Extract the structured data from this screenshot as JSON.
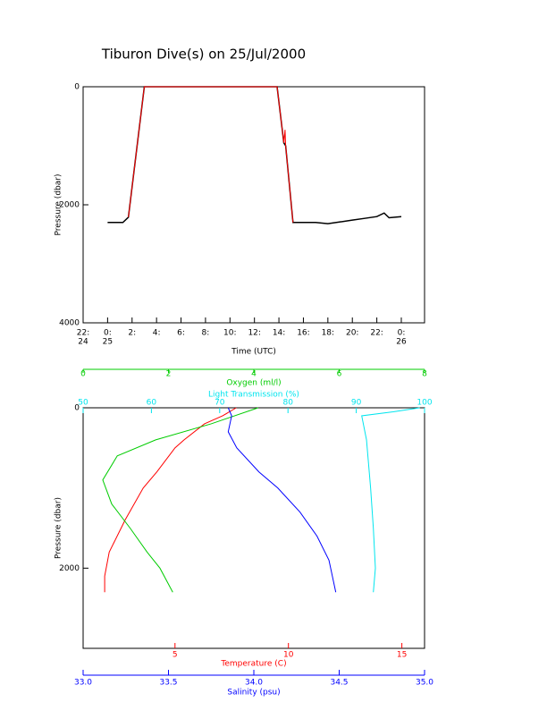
{
  "chart_data": [
    {
      "type": "line",
      "title": "Tiburon Dive(s) on 25/Jul/2000",
      "xlabel": "Time (UTC)",
      "ylabel": "Pressure (dbar)",
      "xlim": [
        -2,
        25.9
      ],
      "ylim": [
        0,
        4000
      ],
      "y_inverted": true,
      "xticks": [
        {
          "value": -2,
          "label": "22:",
          "sublabel": "24"
        },
        {
          "value": 0,
          "label": "0:",
          "sublabel": "25"
        },
        {
          "value": 2,
          "label": "2:"
        },
        {
          "value": 4,
          "label": "4:"
        },
        {
          "value": 6,
          "label": "6:"
        },
        {
          "value": 8,
          "label": "8:"
        },
        {
          "value": 10,
          "label": "10:"
        },
        {
          "value": 12,
          "label": "12:"
        },
        {
          "value": 14,
          "label": "14:"
        },
        {
          "value": 16,
          "label": "16:"
        },
        {
          "value": 18,
          "label": "18:"
        },
        {
          "value": 20,
          "label": "20:"
        },
        {
          "value": 22,
          "label": "22:"
        },
        {
          "value": 24,
          "label": "0:",
          "sublabel": "26"
        }
      ],
      "yticks": [
        0,
        2000,
        4000
      ],
      "series": [
        {
          "color": "#000000",
          "x": [
            0,
            1.25,
            1.7,
            3.0,
            13.85,
            14.4,
            14.55,
            15.15,
            17,
            18,
            19,
            20,
            21,
            22,
            22.6,
            23,
            24
          ],
          "y": [
            2300,
            2300,
            2210,
            0,
            0,
            950,
            1000,
            2300,
            2300,
            2320,
            2290,
            2260,
            2230,
            2200,
            2140,
            2220,
            2200
          ]
        },
        {
          "color": "#ff0000",
          "x": [
            1.7,
            3.0,
            13.85,
            14.4,
            14.5,
            14.55,
            15.15
          ],
          "y": [
            2210,
            0,
            0,
            950,
            730,
            1000,
            2300
          ]
        }
      ]
    },
    {
      "type": "line",
      "ylabel": "Pressure (dbar)",
      "ylim": [
        0,
        3000
      ],
      "y_inverted": true,
      "yticks": [
        0,
        2000
      ],
      "x_axes": [
        {
          "label": "Oxygen (ml/l)",
          "color": "#00cc00",
          "position": "top",
          "xlim": [
            0,
            8
          ],
          "xticks": [
            0,
            2,
            4,
            6,
            8
          ]
        },
        {
          "label": "Light Transmission (%)",
          "color": "#00e5ee",
          "position": "top",
          "xlim": [
            50,
            100
          ],
          "xticks": [
            50,
            60,
            70,
            80,
            90,
            100
          ]
        },
        {
          "label": "Temperature (C)",
          "color": "#ff0000",
          "position": "bottom",
          "xlim": [
            0.95,
            16
          ],
          "xticks": [
            5,
            10,
            15
          ]
        },
        {
          "label": "Salinity (psu)",
          "color": "#0000ff",
          "position": "bottom",
          "xlim": [
            33.0,
            35.0
          ],
          "xticks": [
            {
              "value": 33.0,
              "label": "33.0"
            },
            {
              "value": 33.5,
              "label": "33.5"
            },
            {
              "value": 34.0,
              "label": "34.0"
            },
            {
              "value": 34.5,
              "label": "34.5"
            },
            {
              "value": 35.0,
              "label": "35.0"
            }
          ]
        }
      ],
      "series": [
        {
          "axis": 2,
          "color": "#ff0000",
          "y": [
            0,
            100,
            200,
            400,
            500,
            800,
            1000,
            1400,
            1800,
            2100,
            2300
          ],
          "x": [
            7.7,
            7.1,
            6.3,
            5.4,
            5.0,
            4.2,
            3.6,
            2.8,
            2.1,
            1.9,
            1.9
          ]
        },
        {
          "axis": 0,
          "color": "#00cc00",
          "y": [
            0,
            200,
            400,
            600,
            900,
            1200,
            1500,
            1800,
            2000,
            2200,
            2300
          ],
          "x": [
            4.1,
            3.0,
            1.7,
            0.8,
            0.46,
            0.67,
            1.1,
            1.5,
            1.8,
            2.0,
            2.1
          ]
        },
        {
          "axis": 3,
          "color": "#0000ff",
          "y": [
            0,
            100,
            300,
            500,
            800,
            1000,
            1300,
            1600,
            1900,
            2100,
            2300
          ],
          "x": [
            33.85,
            33.87,
            33.85,
            33.9,
            34.03,
            34.14,
            34.27,
            34.37,
            34.44,
            34.46,
            34.48
          ]
        },
        {
          "axis": 1,
          "color": "#00e5ee",
          "y": [
            0,
            50,
            100,
            400,
            1000,
            1500,
            2000,
            2300
          ],
          "x": [
            99.3,
            95.4,
            90.8,
            91.5,
            92.1,
            92.5,
            92.8,
            92.5
          ]
        }
      ]
    }
  ]
}
